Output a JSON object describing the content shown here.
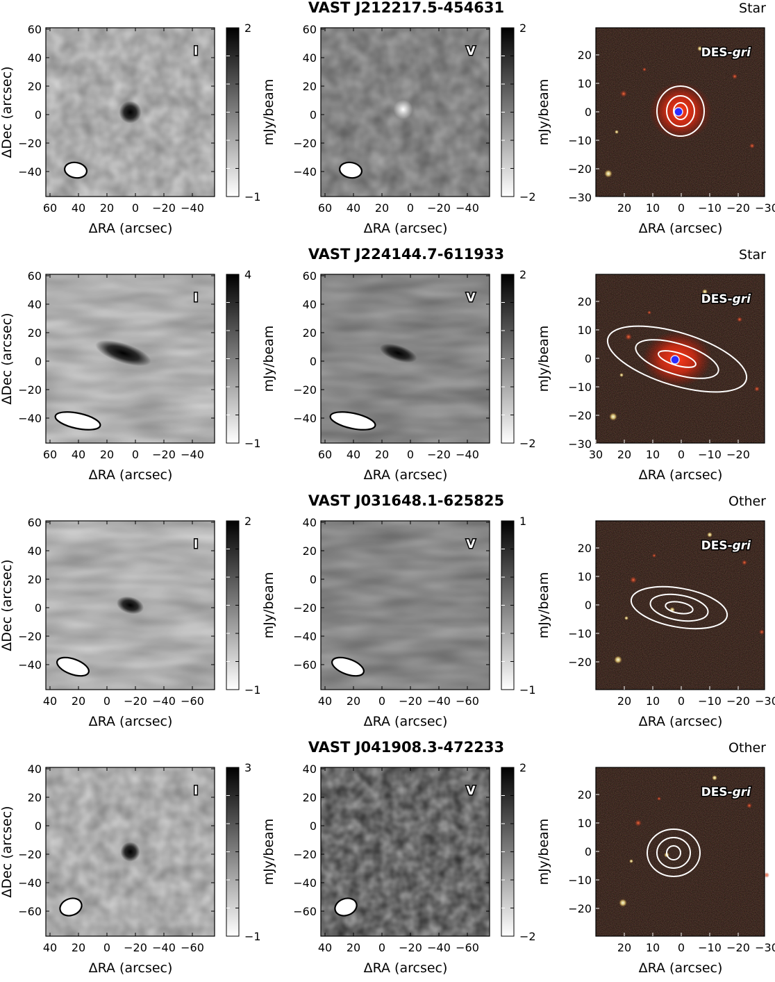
{
  "figure": {
    "x_axis_label": "ΔRA (arcsec)",
    "y_axis_label": "ΔDec (arcsec)",
    "colorbar_label": "mJy/beam",
    "optical_survey": "DES",
    "optical_bands": "gri",
    "rows": [
      {
        "title": "VAST J212217.5-454631",
        "class": "Star",
        "stokes_i": {
          "label": "I",
          "cbar_ticks": [
            "2",
            "−1"
          ],
          "x_ticks": [
            "60",
            "40",
            "20",
            "0",
            "−20",
            "−40"
          ],
          "y_ticks": [
            "60",
            "40",
            "20",
            "0",
            "−20",
            "−40"
          ]
        },
        "stokes_v": {
          "label": "V",
          "cbar_ticks": [
            "2",
            "−2"
          ],
          "x_ticks": [
            "60",
            "40",
            "20",
            "0",
            "−20",
            "−40"
          ],
          "y_ticks": [
            "60",
            "40",
            "20",
            "0",
            "−20",
            "−40"
          ]
        },
        "optical": {
          "x_ticks": [
            "20",
            "10",
            "0",
            "−10",
            "−20",
            "−30"
          ],
          "y_ticks": [
            "20",
            "10",
            "0",
            "−10",
            "−20",
            "−30"
          ]
        }
      },
      {
        "title": "VAST J224144.7-611933",
        "class": "Star",
        "stokes_i": {
          "label": "I",
          "cbar_ticks": [
            "4",
            "−1"
          ],
          "x_ticks": [
            "60",
            "40",
            "20",
            "0",
            "−20",
            "−40"
          ],
          "y_ticks": [
            "60",
            "40",
            "20",
            "0",
            "−20",
            "−40"
          ]
        },
        "stokes_v": {
          "label": "V",
          "cbar_ticks": [
            "2",
            "−2"
          ],
          "x_ticks": [
            "60",
            "40",
            "20",
            "0",
            "−20",
            "−40"
          ],
          "y_ticks": [
            "60",
            "40",
            "20",
            "0",
            "−20",
            "−40"
          ]
        },
        "optical": {
          "x_ticks": [
            "30",
            "20",
            "10",
            "0",
            "−10",
            "−20"
          ],
          "y_ticks": [
            "20",
            "10",
            "0",
            "−10",
            "−20",
            "−30"
          ]
        }
      },
      {
        "title": "VAST J031648.1-625825",
        "class": "Other",
        "stokes_i": {
          "label": "I",
          "cbar_ticks": [
            "2",
            "−1"
          ],
          "x_ticks": [
            "40",
            "20",
            "0",
            "−20",
            "−40",
            "−60"
          ],
          "y_ticks": [
            "60",
            "40",
            "20",
            "0",
            "−20",
            "−40"
          ]
        },
        "stokes_v": {
          "label": "V",
          "cbar_ticks": [
            "1",
            "−1"
          ],
          "x_ticks": [
            "40",
            "20",
            "0",
            "−20",
            "−40",
            "−60"
          ],
          "y_ticks": [
            "40",
            "20",
            "0",
            "−20",
            "−40",
            "−60"
          ]
        },
        "optical": {
          "x_ticks": [
            "20",
            "10",
            "0",
            "−10",
            "−20",
            "−30"
          ],
          "y_ticks": [
            "20",
            "10",
            "0",
            "−10",
            "−20"
          ]
        }
      },
      {
        "title": "VAST J041908.3-472233",
        "class": "Other",
        "stokes_i": {
          "label": "I",
          "cbar_ticks": [
            "3",
            "−1"
          ],
          "x_ticks": [
            "40",
            "20",
            "0",
            "−20",
            "−40",
            "−60"
          ],
          "y_ticks": [
            "40",
            "20",
            "0",
            "−20",
            "−40",
            "−60"
          ]
        },
        "stokes_v": {
          "label": "V",
          "cbar_ticks": [
            "2",
            "−2"
          ],
          "x_ticks": [
            "40",
            "20",
            "0",
            "−20",
            "−40",
            "−60"
          ],
          "y_ticks": [
            "40",
            "20",
            "0",
            "−20",
            "−40",
            "−60"
          ]
        },
        "optical": {
          "x_ticks": [
            "20",
            "10",
            "0",
            "−10",
            "−20",
            "−30"
          ],
          "y_ticks": [
            "20",
            "10",
            "0",
            "−10",
            "−20"
          ]
        }
      }
    ]
  }
}
